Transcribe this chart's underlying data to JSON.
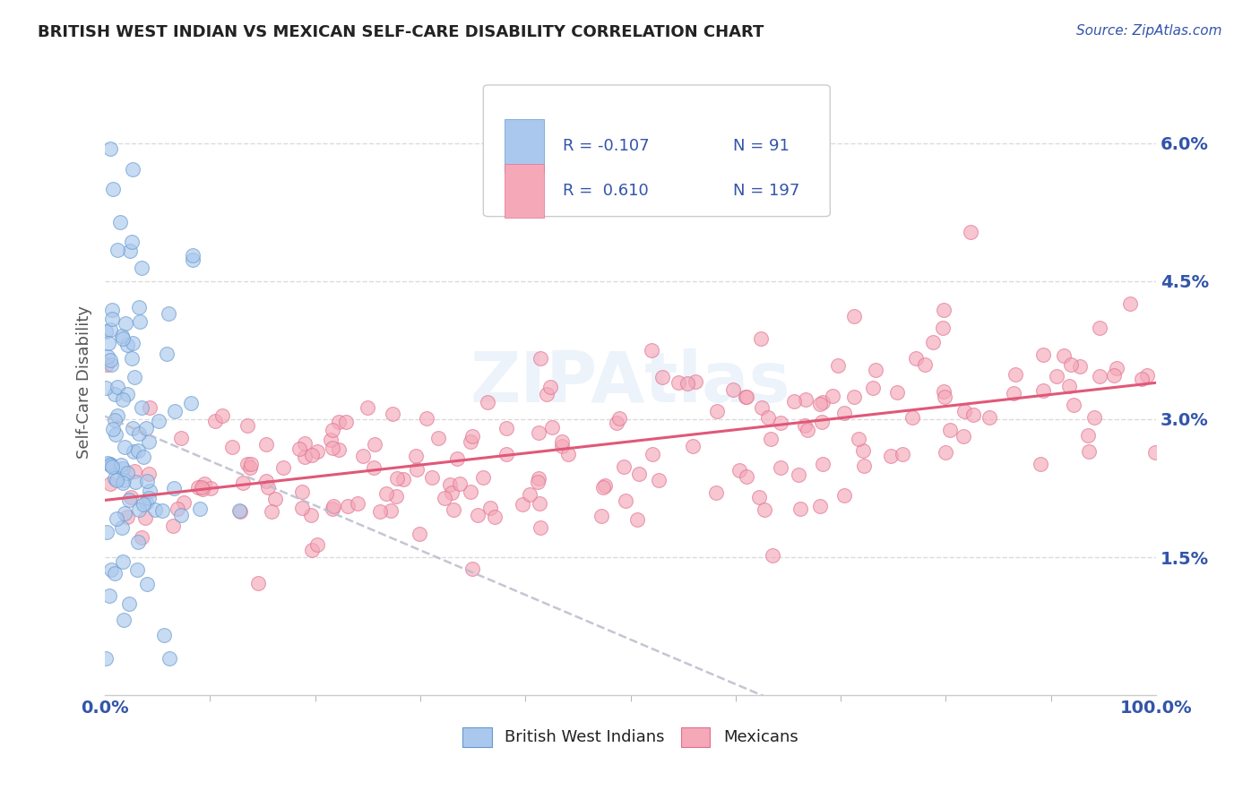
{
  "title": "BRITISH WEST INDIAN VS MEXICAN SELF-CARE DISABILITY CORRELATION CHART",
  "source": "Source: ZipAtlas.com",
  "ylabel": "Self-Care Disability",
  "xlim": [
    0,
    1.0
  ],
  "ylim": [
    0,
    0.068
  ],
  "yticks": [
    0.015,
    0.03,
    0.045,
    0.06
  ],
  "ytick_labels": [
    "1.5%",
    "3.0%",
    "4.5%",
    "6.0%"
  ],
  "xtick_labels": [
    "0.0%",
    "100.0%"
  ],
  "blue_R": -0.107,
  "blue_N": 91,
  "pink_R": 0.61,
  "pink_N": 197,
  "legend_label_blue": "British West Indians",
  "legend_label_pink": "Mexicans",
  "blue_color": "#aac8ed",
  "pink_color": "#f4a8b8",
  "blue_edge_color": "#6699cc",
  "pink_edge_color": "#e07090",
  "pink_line_color": "#e05878",
  "blue_line_color": "#bbbbcc",
  "watermark": "ZIPAtlas",
  "background_color": "#ffffff",
  "grid_color": "#cccccc",
  "title_color": "#222222",
  "axis_label_color": "#555555",
  "tick_label_color": "#3355aa",
  "legend_R_color": "#3355aa",
  "legend_text_color": "#222222"
}
